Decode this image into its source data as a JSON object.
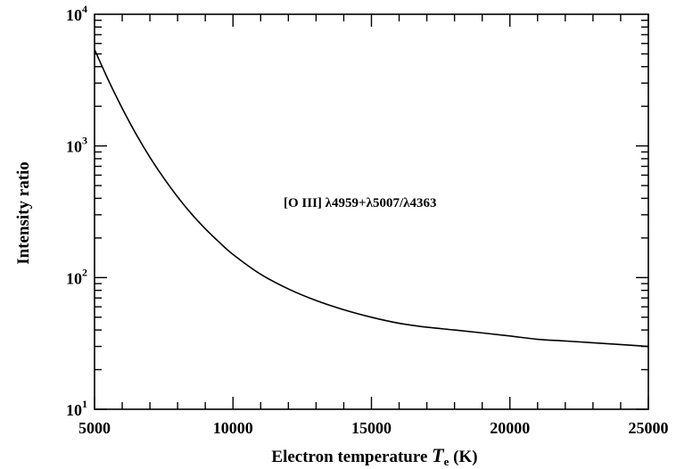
{
  "chart_data": {
    "type": "line",
    "title": "",
    "annotation": "[O III] λ4959+λ5007/λ4363",
    "xlabel": {
      "main": "Electron temperature ",
      "var": "T",
      "sub": "e",
      "unit": " (K)"
    },
    "ylabel": "Intensity ratio",
    "xlim": [
      5000,
      25000
    ],
    "ylim": [
      10,
      10000
    ],
    "yscale": "log",
    "x_ticks": [
      {
        "value": 5000,
        "label": "5000"
      },
      {
        "value": 10000,
        "label": "10000"
      },
      {
        "value": 15000,
        "label": "15000"
      },
      {
        "value": 20000,
        "label": "20000"
      },
      {
        "value": 25000,
        "label": "25000"
      }
    ],
    "y_ticks": [
      {
        "value": 10,
        "base": "10",
        "exp": "1"
      },
      {
        "value": 100,
        "base": "10",
        "exp": "2"
      },
      {
        "value": 1000,
        "base": "10",
        "exp": "3"
      },
      {
        "value": 10000,
        "base": "10",
        "exp": "4"
      }
    ],
    "grid": false,
    "series": [
      {
        "x": [
          5000,
          5500,
          6000,
          6500,
          7000,
          7500,
          8000,
          8500,
          9000,
          9500,
          10000,
          11000,
          12000,
          13000,
          14000,
          15000,
          16000,
          17000,
          18000,
          19000,
          20000,
          21000,
          22000,
          23000,
          24000,
          25000
        ],
        "y": [
          5400,
          3160,
          1930,
          1230,
          820,
          570,
          410,
          305,
          235,
          186,
          150,
          106,
          82,
          67,
          57,
          50,
          45,
          42,
          40,
          38,
          36,
          34,
          33,
          32,
          31,
          30
        ]
      }
    ]
  }
}
